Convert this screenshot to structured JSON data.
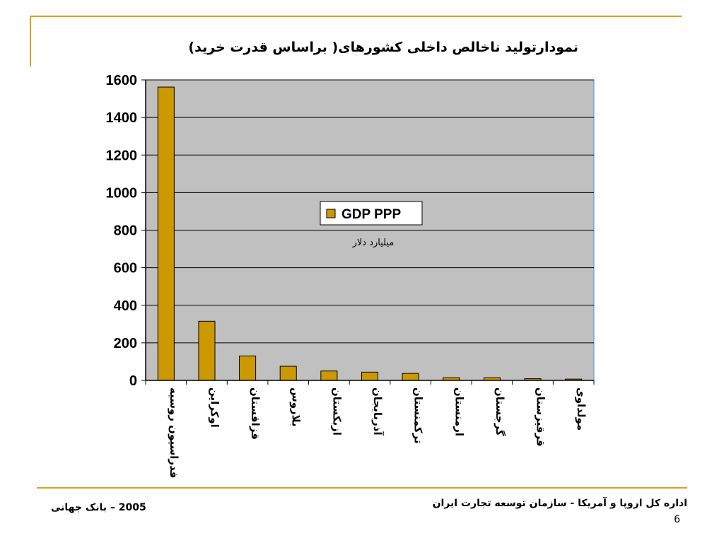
{
  "page": {
    "title": "نمودارتولید ناخالص داخلی کشورهای( براساس قدرت خرید)",
    "footer_org": "اداره کل اروپا و آمریکا - سازمان توسعه تجارت ایران",
    "slide_number": "6",
    "footer_source": "2005 – بانک جهانی"
  },
  "colors": {
    "accent": "#d9a21b",
    "bar_fill": "#cc9900",
    "plot_bg": "#c0c0c0"
  },
  "chart_data": {
    "type": "bar",
    "title": "",
    "xlabel": "",
    "ylabel": "",
    "categories": [
      "فدراسیون روسیه",
      "اوکراین",
      "قزاقستان",
      "بلاروس",
      "ازبکستان",
      "آذربایجان",
      "ترکمنستان",
      "ارمنستان",
      "گرجستان",
      "قرقیزستان",
      "مولداوی"
    ],
    "series": [
      {
        "name": "GDP PPP",
        "values": [
          1562,
          315,
          130,
          75,
          50,
          44,
          37,
          14,
          14,
          9,
          7
        ]
      }
    ],
    "ylim": [
      0,
      1600
    ],
    "yticks": [
      "0",
      "200",
      "400",
      "600",
      "800",
      "1000",
      "1200",
      "1400",
      "1600"
    ],
    "grid": true,
    "legend_position": "center",
    "unit_note": "میلیارد دلار"
  }
}
